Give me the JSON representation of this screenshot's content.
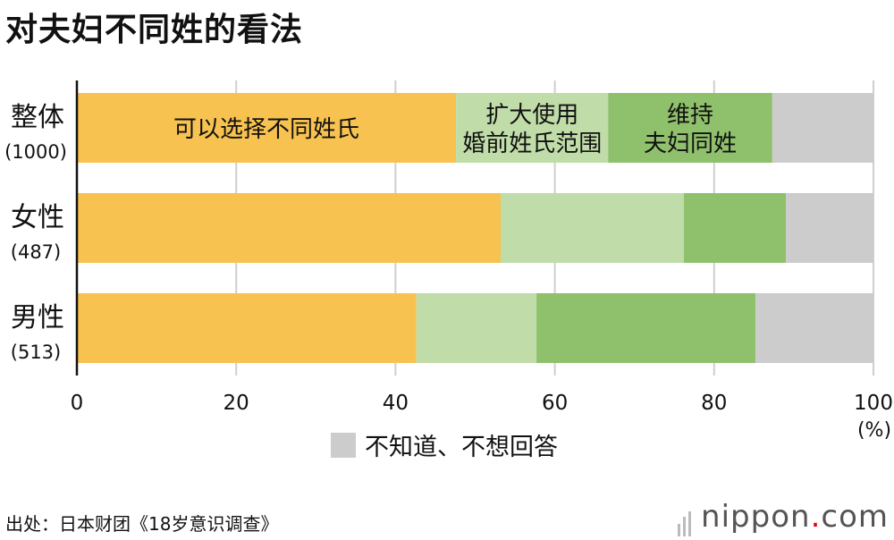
{
  "title": "对夫妇不同姓的看法",
  "chart_data": {
    "type": "bar",
    "orientation": "horizontal",
    "stacked": true,
    "categories": [
      {
        "label": "整体",
        "n": "(1000)"
      },
      {
        "label": "女性",
        "n": "(487)"
      },
      {
        "label": "男性",
        "n": "(513)"
      }
    ],
    "series": [
      {
        "name": "可以选择不同姓氏",
        "color": "#f7c24f",
        "values": [
          47.6,
          53.2,
          42.6
        ]
      },
      {
        "name": "扩大使用婚前姓氏范围",
        "name_lines": [
          "扩大使用",
          "婚前姓氏范围"
        ],
        "color": "#c0dca8",
        "values": [
          19.1,
          23.0,
          15.1
        ]
      },
      {
        "name": "维持夫妇同姓",
        "name_lines": [
          "维持",
          "夫妇同姓"
        ],
        "color": "#8fc06b",
        "values": [
          20.6,
          12.8,
          27.5
        ]
      },
      {
        "name": "不知道、不想回答",
        "color": "#cccccc",
        "values": [
          12.7,
          11.0,
          14.8
        ]
      }
    ],
    "xlim": [
      0,
      100
    ],
    "xticks": [
      0,
      20,
      40,
      60,
      80,
      100
    ],
    "xunit": "(%)",
    "grid": true
  },
  "legend": {
    "label": "不知道、不想回答"
  },
  "source": "出处：日本财团《18岁意识调查》",
  "logo": {
    "text": "nippon",
    "dot": ".",
    "suffix": "com"
  }
}
